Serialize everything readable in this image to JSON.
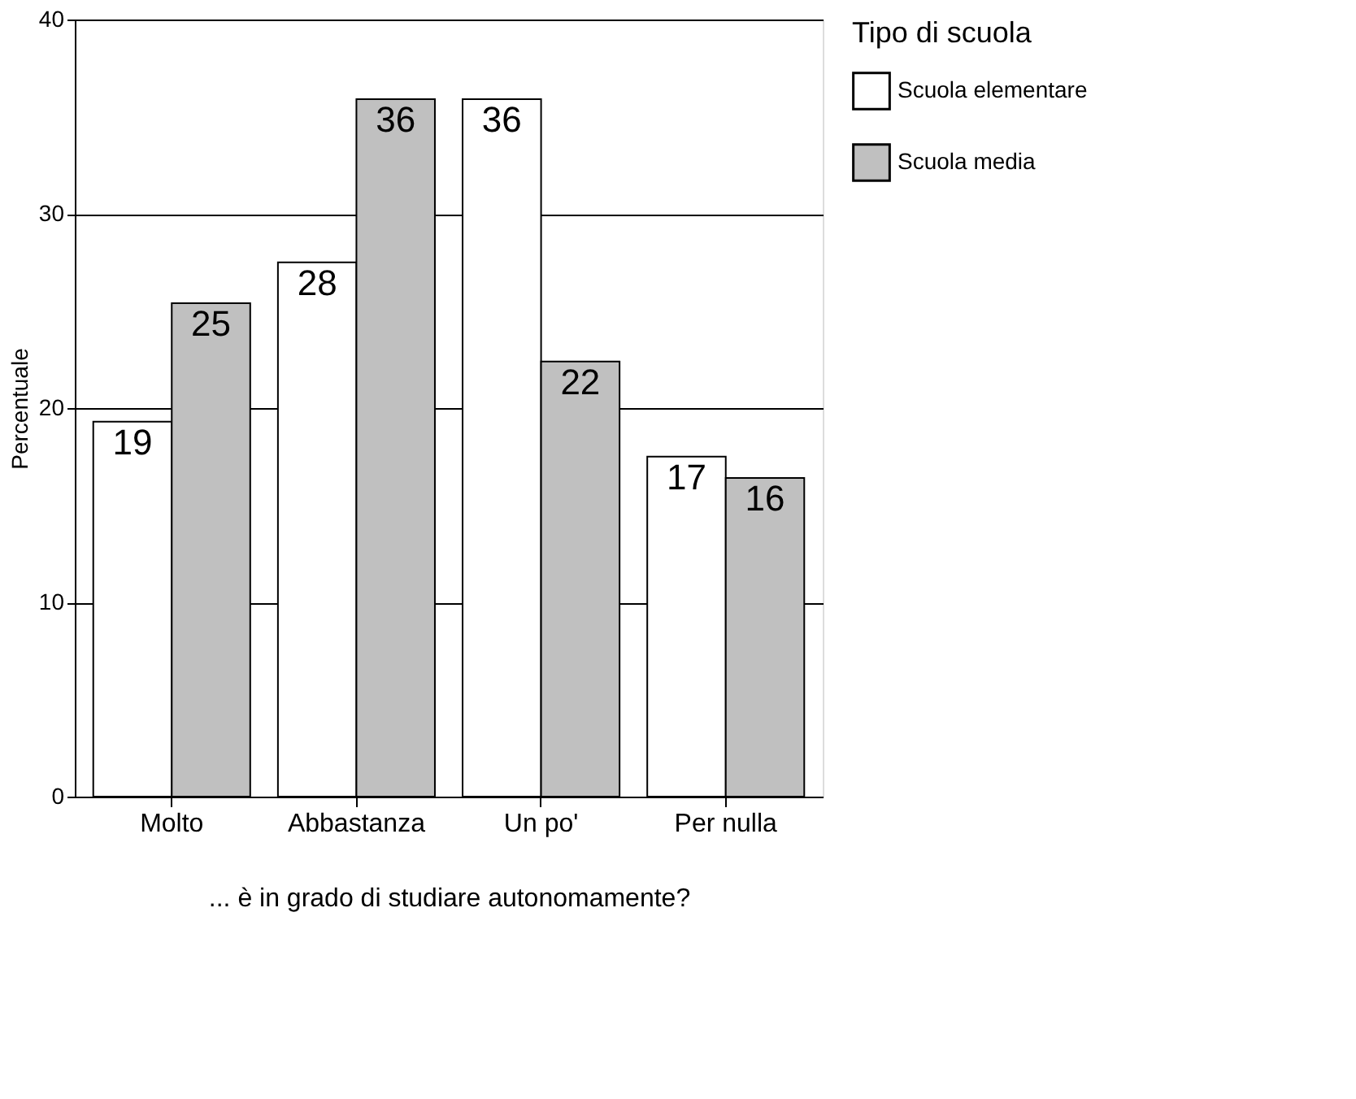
{
  "chart_data": {
    "type": "bar",
    "xlabel": "... è in grado di studiare autonomamente?",
    "ylabel": "Percentuale",
    "legend_title": "Tipo di scuola",
    "categories": [
      "Molto",
      "Abbastanza",
      "Un po'",
      "Per nulla"
    ],
    "series": [
      {
        "name": "Scuola  elementare",
        "color": "#ffffff",
        "values": [
          19.3,
          27.5,
          35.9,
          17.5
        ],
        "value_labels": [
          "19",
          "28",
          "36",
          "17"
        ]
      },
      {
        "name": "Scuola media",
        "color": "#c0c0c0",
        "values": [
          25.4,
          35.9,
          22.4,
          16.4
        ],
        "value_labels": [
          "25",
          "36",
          "22",
          "16"
        ]
      }
    ],
    "ylim": [
      0,
      40
    ],
    "yticks": [
      0,
      10,
      20,
      30,
      40
    ],
    "grid": "y",
    "legend": "right"
  }
}
